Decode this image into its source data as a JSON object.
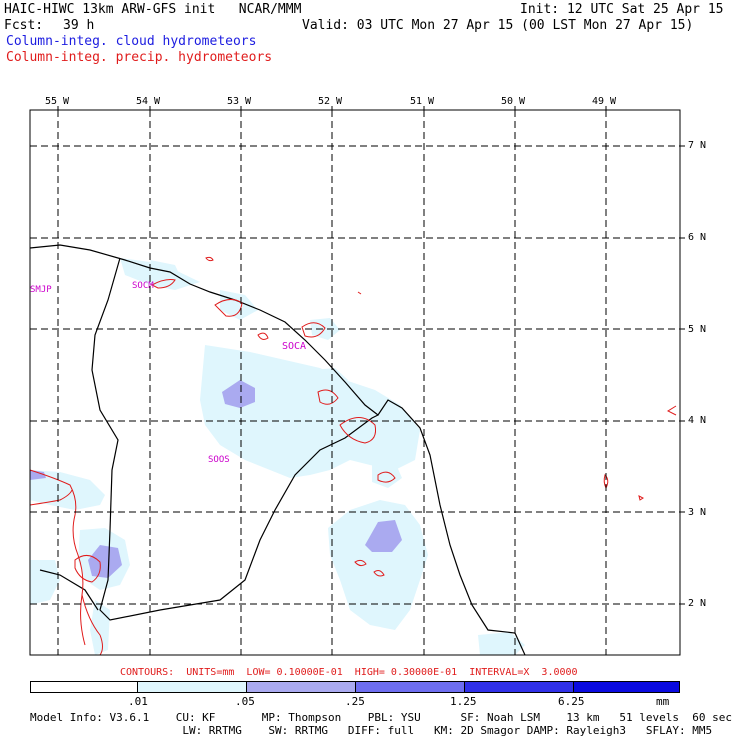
{
  "header": {
    "title": "HAIC-HIWC 13km ARW-GFS init   NCAR/MMM",
    "init": "Init: 12 UTC Sat 25 Apr 15",
    "fcst_label": "Fcst:",
    "fcst_value": "39 h",
    "valid": "Valid: 03 UTC Mon 27 Apr 15 (00 LST Mon 27 Apr 15)",
    "legend_cloud": "Column-integ. cloud hydrometeors",
    "legend_precip": "Column-integ. precip. hydrometeors"
  },
  "map": {
    "lon_labels": [
      "55 W",
      "54 W",
      "53 W",
      "52 W",
      "51 W",
      "50 W",
      "49 W"
    ],
    "lat_labels": [
      "7 N",
      "6 N",
      "5 N",
      "4 N",
      "3 N",
      "2 N"
    ],
    "stations": [
      "SMJP",
      "SOCM",
      "SOCA",
      "SOOS"
    ]
  },
  "contours_note": "CONTOURS:  UNITS=mm  LOW= 0.10000E-01  HIGH= 0.30000E-01  INTERVAL=X  3.0000",
  "colorbar": {
    "labels": [
      ".01",
      ".05",
      ".25",
      "1.25",
      "6.25",
      "mm"
    ],
    "colors": [
      "#ffffff",
      "#dff6fd",
      "#aaaaf0",
      "#6e6ef0",
      "#3030e8",
      "#0a0ae0"
    ]
  },
  "model_info": {
    "line1": "Model Info: V3.6.1    CU: KF       MP: Thompson    PBL: YSU      SF: Noah LSM    13 km   51 levels  60 sec",
    "line2": "                       LW: RRTMG    SW: RRTMG   DIFF: full   KM: 2D Smagor DAMP: Rayleigh3   SFLAY: MM5"
  }
}
